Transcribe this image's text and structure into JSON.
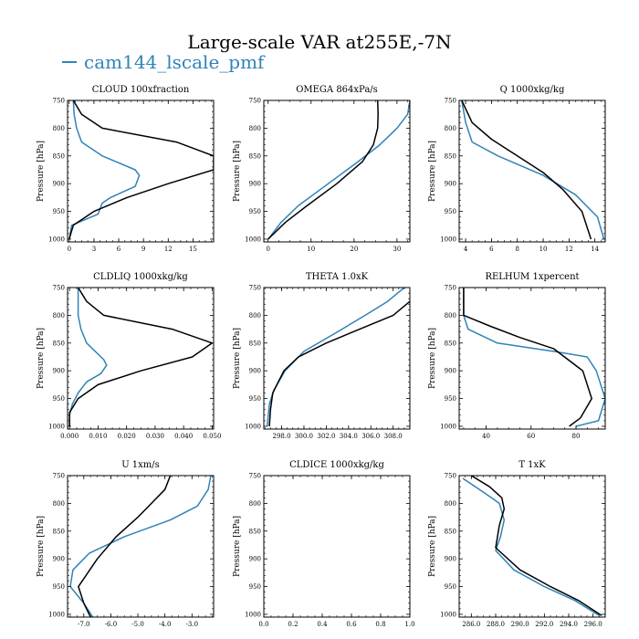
{
  "figure": {
    "title": "Large-scale VAR at255E,-7N",
    "legend": [
      {
        "label": "cam144_lscale_pmf",
        "color": "#2f83b8"
      }
    ]
  },
  "chart_data": [
    {
      "type": "line",
      "title": "CLOUD 100xfraction",
      "ylabel": "Pressure [hPa]",
      "ylim": [
        1005,
        750
      ],
      "xlim": [
        -0.2,
        17.5
      ],
      "xticks": [
        0,
        3,
        6,
        9,
        12,
        15
      ],
      "xtick_labels": [
        "0",
        "3",
        "6",
        "9",
        "12",
        "15"
      ],
      "yticks": [
        750,
        800,
        850,
        900,
        950,
        1000
      ],
      "ytick_labels": [
        "750",
        "800",
        "850",
        "900",
        "950",
        "1000"
      ],
      "series": [
        {
          "color": "#2f83b8",
          "points": [
            [
              0.5,
              750
            ],
            [
              0.6,
              775
            ],
            [
              0.9,
              800
            ],
            [
              1.5,
              825
            ],
            [
              4.0,
              850
            ],
            [
              8.0,
              875
            ],
            [
              8.5,
              885
            ],
            [
              8.0,
              905
            ],
            [
              5.0,
              925
            ],
            [
              4.0,
              935
            ],
            [
              3.5,
              955
            ],
            [
              0.3,
              975
            ],
            [
              0,
              1000
            ]
          ]
        },
        {
          "color": "#000000",
          "points": [
            [
              0.5,
              750
            ],
            [
              1.5,
              775
            ],
            [
              4.0,
              800
            ],
            [
              13.0,
              825
            ],
            [
              17.5,
              850
            ],
            [
              17.5,
              875
            ],
            [
              12.0,
              900
            ],
            [
              7.0,
              925
            ],
            [
              3.0,
              950
            ],
            [
              0.5,
              975
            ],
            [
              0,
              1000
            ]
          ]
        }
      ]
    },
    {
      "type": "line",
      "title": "OMEGA 864xPa/s",
      "ylabel": "Pressure [hPa]",
      "ylim": [
        1005,
        750
      ],
      "xlim": [
        -1,
        33
      ],
      "xticks": [
        0,
        10,
        20,
        30
      ],
      "xtick_labels": [
        "0",
        "10",
        "20",
        "30"
      ],
      "yticks": [
        750,
        800,
        850,
        900,
        950,
        1000
      ],
      "ytick_labels": [
        "750",
        "800",
        "850",
        "900",
        "950",
        "1000"
      ],
      "series": [
        {
          "color": "#2f83b8",
          "points": [
            [
              33,
              750
            ],
            [
              32.5,
              775
            ],
            [
              30,
              800
            ],
            [
              26,
              830
            ],
            [
              21,
              860
            ],
            [
              14,
              900
            ],
            [
              7,
              940
            ],
            [
              3,
              970
            ],
            [
              0,
              1000
            ]
          ]
        },
        {
          "color": "#000000",
          "points": [
            [
              25.5,
              750
            ],
            [
              25.6,
              775
            ],
            [
              25.5,
              800
            ],
            [
              24.5,
              830
            ],
            [
              22,
              860
            ],
            [
              16,
              900
            ],
            [
              9,
              940
            ],
            [
              4,
              970
            ],
            [
              0,
              1000
            ]
          ]
        }
      ]
    },
    {
      "type": "line",
      "title": "Q 1000xkg/kg",
      "ylabel": "Pressure [hPa]",
      "ylim": [
        1005,
        750
      ],
      "xlim": [
        3.5,
        14.8
      ],
      "xticks": [
        4,
        6,
        8,
        10,
        12,
        14
      ],
      "xtick_labels": [
        "4",
        "6",
        "8",
        "10",
        "12",
        "14"
      ],
      "yticks": [
        750,
        800,
        850,
        900,
        950,
        1000
      ],
      "ytick_labels": [
        "750",
        "800",
        "850",
        "900",
        "950",
        "1000"
      ],
      "series": [
        {
          "color": "#2f83b8",
          "points": [
            [
              3.7,
              750
            ],
            [
              4.0,
              790
            ],
            [
              4.5,
              825
            ],
            [
              6.5,
              850
            ],
            [
              8.5,
              870
            ],
            [
              10.0,
              885
            ],
            [
              12.5,
              920
            ],
            [
              14.2,
              960
            ],
            [
              14.7,
              1000
            ]
          ]
        },
        {
          "color": "#000000",
          "points": [
            [
              3.7,
              750
            ],
            [
              4.5,
              790
            ],
            [
              6.0,
              820
            ],
            [
              8.0,
              850
            ],
            [
              10.0,
              880
            ],
            [
              11.5,
              910
            ],
            [
              13.0,
              950
            ],
            [
              13.7,
              1000
            ]
          ]
        }
      ]
    },
    {
      "type": "line",
      "title": "CLDLIQ 1000xkg/kg",
      "ylabel": "Pressure [hPa]",
      "ylim": [
        1005,
        750
      ],
      "xlim": [
        -0.0007,
        0.0505
      ],
      "xticks": [
        0,
        0.01,
        0.02,
        0.03,
        0.04,
        0.05
      ],
      "xtick_labels": [
        "0.000",
        "0.010",
        "0.020",
        "0.030",
        "0.040",
        "0.050"
      ],
      "yticks": [
        750,
        800,
        850,
        900,
        950,
        1000
      ],
      "ytick_labels": [
        "750",
        "800",
        "850",
        "900",
        "950",
        "1000"
      ],
      "series": [
        {
          "color": "#2f83b8",
          "points": [
            [
              0.003,
              750
            ],
            [
              0.003,
              800
            ],
            [
              0.004,
              825
            ],
            [
              0.006,
              850
            ],
            [
              0.012,
              880
            ],
            [
              0.013,
              890
            ],
            [
              0.011,
              905
            ],
            [
              0.006,
              920
            ],
            [
              0.003,
              940
            ],
            [
              0.001,
              960
            ],
            [
              0,
              980
            ],
            [
              0,
              1000
            ]
          ]
        },
        {
          "color": "#000000",
          "points": [
            [
              0.003,
              750
            ],
            [
              0.006,
              775
            ],
            [
              0.012,
              800
            ],
            [
              0.036,
              825
            ],
            [
              0.05,
              850
            ],
            [
              0.043,
              875
            ],
            [
              0.025,
              900
            ],
            [
              0.01,
              925
            ],
            [
              0.003,
              950
            ],
            [
              0,
              975
            ],
            [
              0,
              1000
            ]
          ]
        }
      ]
    },
    {
      "type": "line",
      "title": "THETA 1.0xK",
      "ylabel": "Pressure [hPa]",
      "ylim": [
        1005,
        750
      ],
      "xlim": [
        296.4,
        309.5
      ],
      "xticks": [
        298,
        300,
        302,
        304,
        306,
        308
      ],
      "xtick_labels": [
        "298.0",
        "300.0",
        "302.0",
        "304.0",
        "306.0",
        "308.0"
      ],
      "yticks": [
        750,
        800,
        850,
        900,
        950,
        1000
      ],
      "ytick_labels": [
        "750",
        "800",
        "850",
        "900",
        "950",
        "1000"
      ],
      "series": [
        {
          "color": "#2f83b8",
          "points": [
            [
              309.0,
              750
            ],
            [
              307.5,
              775
            ],
            [
              305.5,
              800
            ],
            [
              303.0,
              830
            ],
            [
              300.0,
              865
            ],
            [
              298.3,
              900
            ],
            [
              297.3,
              935
            ],
            [
              296.9,
              960
            ],
            [
              296.7,
              1000
            ]
          ]
        },
        {
          "color": "#000000",
          "points": [
            [
              309.5,
              775
            ],
            [
              308.0,
              800
            ],
            [
              305.0,
              825
            ],
            [
              302.0,
              850
            ],
            [
              300.0,
              870
            ],
            [
              299.5,
              875
            ],
            [
              298.2,
              900
            ],
            [
              297.2,
              940
            ],
            [
              297.0,
              970
            ],
            [
              296.9,
              1000
            ]
          ]
        }
      ]
    },
    {
      "type": "line",
      "title": "RELHUM 1xpercent",
      "ylabel": "Pressure [hPa]",
      "ylim": [
        1005,
        750
      ],
      "xlim": [
        28,
        93
      ],
      "xticks": [
        40,
        60,
        80
      ],
      "xtick_labels": [
        "40",
        "60",
        "80"
      ],
      "yticks": [
        750,
        800,
        850,
        900,
        950,
        1000
      ],
      "ytick_labels": [
        "750",
        "800",
        "850",
        "900",
        "950",
        "1000"
      ],
      "series": [
        {
          "color": "#2f83b8",
          "points": [
            [
              30,
              750
            ],
            [
              30,
              800
            ],
            [
              32,
              825
            ],
            [
              45,
              850
            ],
            [
              70,
              865
            ],
            [
              85,
              875
            ],
            [
              89,
              900
            ],
            [
              93,
              950
            ],
            [
              90,
              990
            ],
            [
              80,
              1000
            ]
          ]
        },
        {
          "color": "#000000",
          "points": [
            [
              30,
              750
            ],
            [
              30,
              775
            ],
            [
              30,
              800
            ],
            [
              42,
              820
            ],
            [
              55,
              840
            ],
            [
              70,
              860
            ],
            [
              83,
              900
            ],
            [
              87,
              950
            ],
            [
              82,
              985
            ],
            [
              77,
              1000
            ]
          ]
        }
      ]
    },
    {
      "type": "line",
      "title": "U 1xm/s",
      "ylabel": "Pressure [hPa]",
      "ylim": [
        1005,
        750
      ],
      "xlim": [
        -7.6,
        -2.2
      ],
      "xticks": [
        -7,
        -6,
        -5,
        -4,
        -3
      ],
      "xtick_labels": [
        "-7.0",
        "-6.0",
        "-5.0",
        "-4.0",
        "-3.0"
      ],
      "yticks": [
        750,
        800,
        850,
        900,
        950,
        1000
      ],
      "ytick_labels": [
        "750",
        "800",
        "850",
        "900",
        "950",
        "1000"
      ],
      "series": [
        {
          "color": "#2f83b8",
          "points": [
            [
              -2.3,
              750
            ],
            [
              -2.4,
              775
            ],
            [
              -2.8,
              805
            ],
            [
              -3.8,
              830
            ],
            [
              -5.5,
              860
            ],
            [
              -6.8,
              890
            ],
            [
              -7.4,
              920
            ],
            [
              -7.5,
              950
            ],
            [
              -7.0,
              980
            ],
            [
              -6.6,
              1010
            ]
          ]
        },
        {
          "color": "#000000",
          "points": [
            [
              -3.8,
              750
            ],
            [
              -4.0,
              775
            ],
            [
              -4.5,
              800
            ],
            [
              -5.0,
              825
            ],
            [
              -5.8,
              860
            ],
            [
              -6.5,
              900
            ],
            [
              -7.2,
              950
            ],
            [
              -7.0,
              980
            ],
            [
              -6.7,
              1010
            ]
          ]
        }
      ]
    },
    {
      "type": "line",
      "title": "CLDICE 1000xkg/kg",
      "ylabel": "Pressure [hPa]",
      "ylim": [
        1005,
        750
      ],
      "xlim": [
        0,
        1
      ],
      "xticks": [
        0,
        0.2,
        0.4,
        0.6,
        0.8,
        1.0
      ],
      "xtick_labels": [
        "0.0",
        "0.2",
        "0.4",
        "0.6",
        "0.8",
        "1.0"
      ],
      "yticks": [
        750,
        800,
        850,
        900,
        950,
        1000
      ],
      "ytick_labels": [
        "750",
        "800",
        "850",
        "900",
        "950",
        "1000"
      ],
      "series": []
    },
    {
      "type": "line",
      "title": "T 1xK",
      "ylabel": "Pressure [hPa]",
      "ylim": [
        1005,
        750
      ],
      "xlim": [
        285,
        297
      ],
      "xticks": [
        286,
        288,
        290,
        292,
        294,
        296
      ],
      "xtick_labels": [
        "286.0",
        "288.0",
        "290.0",
        "292.0",
        "294.0",
        "296.0"
      ],
      "yticks": [
        750,
        800,
        850,
        900,
        950,
        1000
      ],
      "ytick_labels": [
        "750",
        "800",
        "850",
        "900",
        "950",
        "1000"
      ],
      "series": [
        {
          "color": "#2f83b8",
          "points": [
            [
              285.3,
              755
            ],
            [
              287.0,
              780
            ],
            [
              288.3,
              800
            ],
            [
              288.7,
              830
            ],
            [
              288.4,
              860
            ],
            [
              288.0,
              885
            ],
            [
              289.5,
              920
            ],
            [
              292.0,
              950
            ],
            [
              294.5,
              975
            ],
            [
              296.5,
              1002
            ]
          ]
        },
        {
          "color": "#000000",
          "points": [
            [
              286.0,
              750
            ],
            [
              287.5,
              770
            ],
            [
              288.5,
              790
            ],
            [
              288.7,
              810
            ],
            [
              288.3,
              840
            ],
            [
              288.0,
              880
            ],
            [
              290.0,
              920
            ],
            [
              292.5,
              950
            ],
            [
              294.8,
              975
            ],
            [
              296.7,
              1002
            ]
          ]
        }
      ]
    }
  ]
}
